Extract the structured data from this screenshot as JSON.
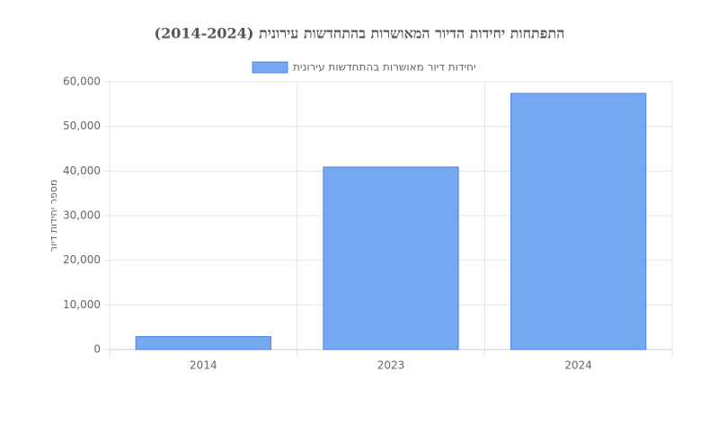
{
  "chart_data": {
    "type": "bar",
    "title": "התפתחות יחידות הדיור המאושרות בהתחדשות עירונית (2014-2024)",
    "y_label": "מספר יחידות דיור",
    "categories": [
      "2014",
      "2023",
      "2024"
    ],
    "series": [
      {
        "name": "יחידות דיור מאושרות בהתחדשות עירונית",
        "color": "#76a8f1",
        "border": "#4a86e8",
        "values": [
          2900,
          40900,
          57400
        ]
      }
    ],
    "ylim": [
      0,
      60000
    ],
    "yticks": [
      0,
      {
        "value": 10000,
        "label": "10,000"
      },
      {
        "value": 20000,
        "label": "20,000"
      },
      {
        "value": 30000,
        "label": "30,000"
      },
      {
        "value": 40000,
        "label": "40,000"
      },
      {
        "value": 50000,
        "label": "50,000"
      },
      {
        "value": 60000,
        "label": "60,000"
      }
    ],
    "grid": true
  }
}
